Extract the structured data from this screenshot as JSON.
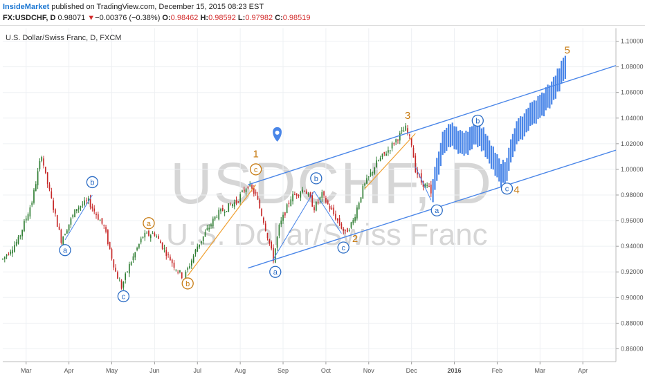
{
  "header": {
    "author": "InsideMarket",
    "published_text": " published on TradingView.com, December 15, 2015 08:23 EST",
    "symbol": "FX:USDCHF, D",
    "last": "0.98071",
    "arrow": "▼",
    "change": "−0.00376 (−0.38%)",
    "o_label": "O:",
    "o_value": "0.98462",
    "h_label": "H:",
    "h_value": "0.98592",
    "l_label": "L:",
    "l_value": "0.97982",
    "c_label": "C:",
    "c_value": "0.98519"
  },
  "colors": {
    "up": "#2e7d32",
    "down": "#c62828",
    "projection": "#4a86e8",
    "channel": "#4a86e8",
    "orange": "#f0a030",
    "wave_orange": "#c77b12",
    "wave_blue": "#2a6bc4",
    "grid": "#eef0f3",
    "axis_text": "#555555"
  },
  "chart_data": {
    "type": "candlestick",
    "title": "U.S. Dollar/Swiss Franc, D, FXCM",
    "watermark_symbol": "USDCHF, D",
    "watermark_desc": "U.S. Dollar/Swiss Franc",
    "ylim": [
      0.85,
      1.11
    ],
    "yticks": [
      "0.86000",
      "0.88000",
      "0.90000",
      "0.92000",
      "0.94000",
      "0.96000",
      "0.98000",
      "1.00000",
      "1.02000",
      "1.04000",
      "1.06000",
      "1.08000",
      "1.10000"
    ],
    "xticks": [
      "Mar",
      "Apr",
      "May",
      "Jun",
      "Jul",
      "Aug",
      "Sep",
      "Oct",
      "Nov",
      "Dec",
      "2016",
      "Feb",
      "Mar",
      "Apr"
    ],
    "xlim": [
      0,
      315
    ],
    "tick_pos": [
      12,
      34,
      56,
      78,
      100,
      122,
      144,
      166,
      188,
      210,
      232,
      254,
      276,
      298
    ],
    "grid": true,
    "price_path": [
      [
        0,
        0.93
      ],
      [
        8,
        0.945
      ],
      [
        15,
        0.975
      ],
      [
        20,
        1.012
      ],
      [
        22,
        0.995
      ],
      [
        30,
        0.945
      ],
      [
        38,
        0.97
      ],
      [
        44,
        0.975
      ],
      [
        52,
        0.955
      ],
      [
        58,
        0.92
      ],
      [
        61,
        0.908
      ],
      [
        65,
        0.925
      ],
      [
        72,
        0.948
      ],
      [
        78,
        0.95
      ],
      [
        88,
        0.925
      ],
      [
        93,
        0.915
      ],
      [
        100,
        0.94
      ],
      [
        110,
        0.965
      ],
      [
        120,
        0.975
      ],
      [
        126,
        0.988
      ],
      [
        130,
        0.98
      ],
      [
        134,
        0.96
      ],
      [
        139,
        0.93
      ],
      [
        142,
        0.955
      ],
      [
        148,
        0.978
      ],
      [
        155,
        0.985
      ],
      [
        160,
        0.97
      ],
      [
        164,
        0.98
      ],
      [
        170,
        0.965
      ],
      [
        176,
        0.95
      ],
      [
        180,
        0.96
      ],
      [
        185,
        0.985
      ],
      [
        192,
        1.005
      ],
      [
        198,
        1.015
      ],
      [
        203,
        1.025
      ],
      [
        207,
        1.032
      ],
      [
        210,
        1.02
      ],
      [
        212,
        1.0
      ],
      [
        215,
        0.99
      ],
      [
        219,
        0.985
      ],
      [
        220,
        0.98
      ]
    ],
    "projection_path": [
      [
        221,
        0.985
      ],
      [
        226,
        1.02
      ],
      [
        231,
        1.028
      ],
      [
        237,
        1.018
      ],
      [
        243,
        1.03
      ],
      [
        249,
        1.018
      ],
      [
        256,
        0.995
      ],
      [
        259,
        1.0
      ],
      [
        263,
        1.025
      ],
      [
        270,
        1.04
      ],
      [
        277,
        1.05
      ],
      [
        283,
        1.062
      ],
      [
        289,
        1.08
      ]
    ],
    "channel_upper": [
      [
        126,
        0.988
      ],
      [
        315,
        1.081
      ]
    ],
    "channel_lower": [
      [
        126,
        0.923
      ],
      [
        315,
        1.015
      ]
    ],
    "orange_lines": [
      [
        [
          95,
          0.917
        ],
        [
          130,
          0.988
        ]
      ],
      [
        [
          186,
          0.985
        ],
        [
          212,
          1.028
        ]
      ]
    ],
    "blue_thin_lines": [
      [
        [
          46,
          0.98
        ],
        [
          32,
          0.945
        ]
      ],
      [
        [
          139,
          0.93
        ],
        [
          160,
          0.983
        ]
      ],
      [
        [
          160,
          0.983
        ],
        [
          174,
          0.95
        ]
      ],
      [
        [
          212,
          1.002
        ],
        [
          220,
          0.976
        ]
      ]
    ],
    "wave_labels": [
      {
        "text": "a",
        "x": 32,
        "y": 0.937,
        "style": "blue_circle"
      },
      {
        "text": "b",
        "x": 46,
        "y": 0.99,
        "style": "blue_circle"
      },
      {
        "text": "c",
        "x": 62,
        "y": 0.901,
        "style": "blue_circle"
      },
      {
        "text": "a",
        "x": 75,
        "y": 0.958,
        "style": "orange_circle"
      },
      {
        "text": "b",
        "x": 95,
        "y": 0.911,
        "style": "orange_circle"
      },
      {
        "text": "c",
        "x": 130,
        "y": 1.0,
        "style": "orange_circle"
      },
      {
        "text": "1",
        "x": 130,
        "y": 1.012,
        "style": "orange_text"
      },
      {
        "text": "a",
        "x": 140,
        "y": 0.92,
        "style": "blue_circle"
      },
      {
        "text": "b",
        "x": 161,
        "y": 0.993,
        "style": "blue_circle"
      },
      {
        "text": "c",
        "x": 175,
        "y": 0.939,
        "style": "blue_circle"
      },
      {
        "text": "2",
        "x": 181,
        "y": 0.946,
        "style": "orange_text"
      },
      {
        "text": "3",
        "x": 208,
        "y": 1.042,
        "style": "orange_text"
      },
      {
        "text": "a",
        "x": 223,
        "y": 0.968,
        "style": "blue_circle"
      },
      {
        "text": "b",
        "x": 244,
        "y": 1.038,
        "style": "blue_circle"
      },
      {
        "text": "c",
        "x": 259,
        "y": 0.985,
        "style": "blue_circle"
      },
      {
        "text": "4",
        "x": 264,
        "y": 0.984,
        "style": "orange_text"
      },
      {
        "text": "5",
        "x": 290,
        "y": 1.093,
        "style": "orange_text"
      }
    ],
    "marker": {
      "x": 141,
      "y": 1.027
    }
  }
}
